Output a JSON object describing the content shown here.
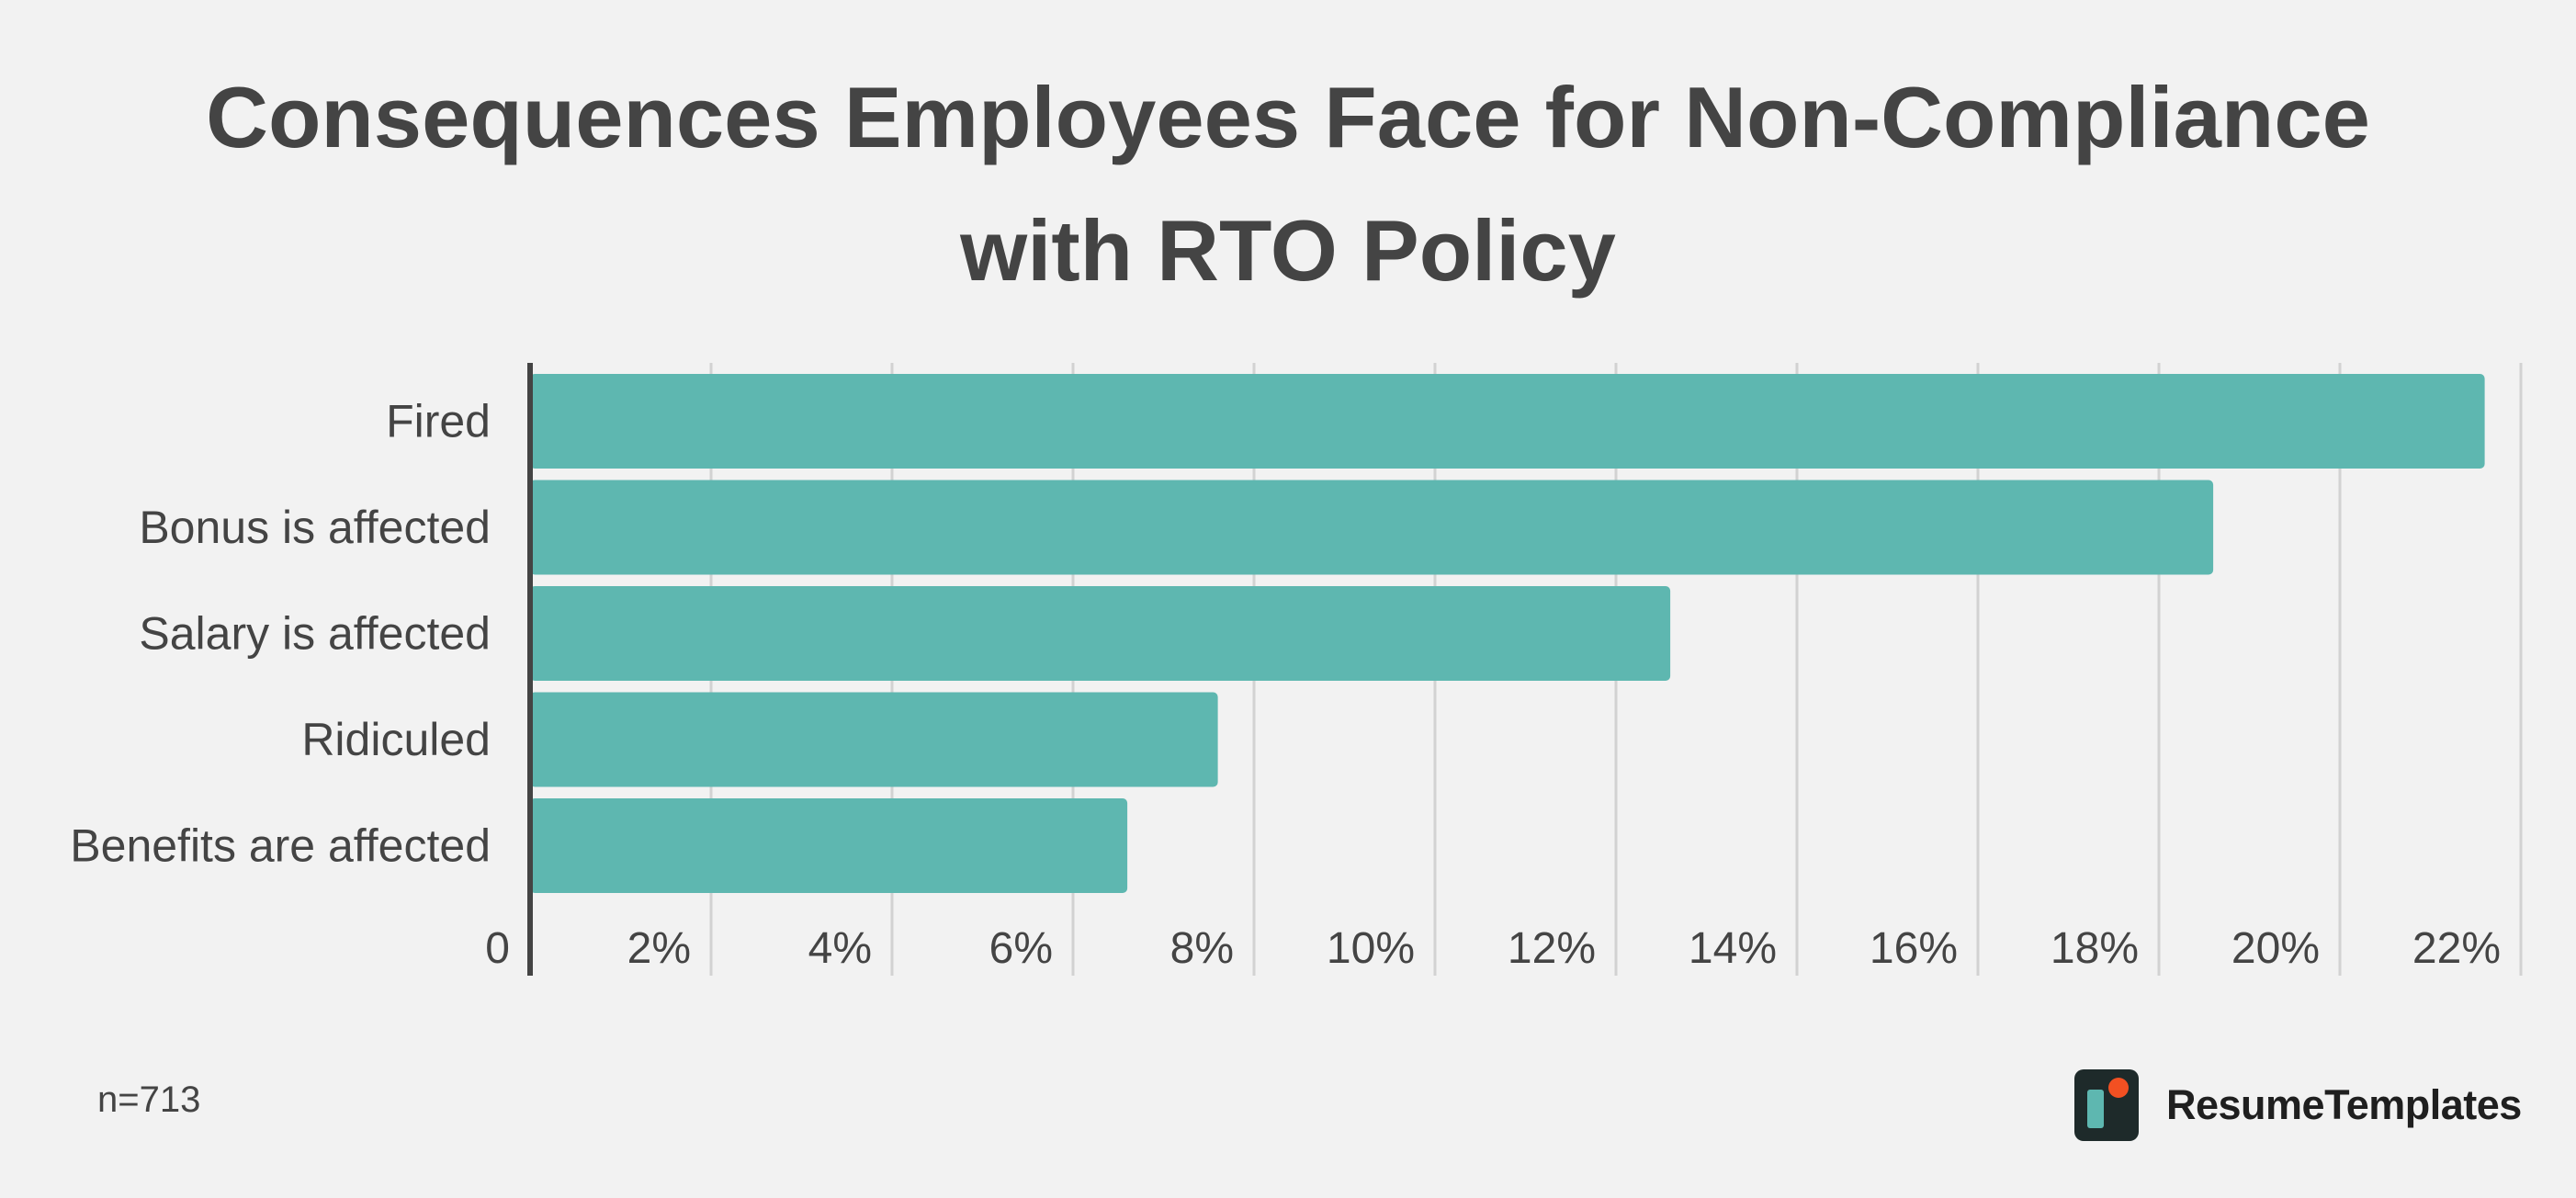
{
  "chart_data": {
    "type": "bar",
    "orientation": "horizontal",
    "title_lines": [
      "Consequences Employees Face for Non-Compliance",
      "with RTO Policy"
    ],
    "categories": [
      "Fired",
      "Bonus is affected",
      "Salary is affected",
      "Ridiculed",
      "Benefits are affected"
    ],
    "values": [
      21.6,
      18.6,
      12.6,
      7.6,
      6.6
    ],
    "unit": "%",
    "xlim": [
      0,
      22
    ],
    "ticks": [
      0,
      2,
      4,
      6,
      8,
      10,
      12,
      14,
      16,
      18,
      20,
      22
    ],
    "tick_labels": [
      "0",
      "2%",
      "4%",
      "6%",
      "8%",
      "10%",
      "12%",
      "14%",
      "16%",
      "18%",
      "20%",
      "22%"
    ],
    "grid": true,
    "xlabel": "",
    "ylabel": ""
  },
  "footer": {
    "sample_size": "n=713",
    "brand_name": "ResumeTemplates"
  },
  "colors": {
    "bar": "#5eb7b0",
    "grid": "#d2d2d2",
    "axis": "#444444",
    "text": "#444444",
    "background": "#f2f2f2",
    "logo_dark": "#1e2a2a",
    "logo_teal": "#5eb7b0",
    "logo_orange": "#f25022"
  }
}
